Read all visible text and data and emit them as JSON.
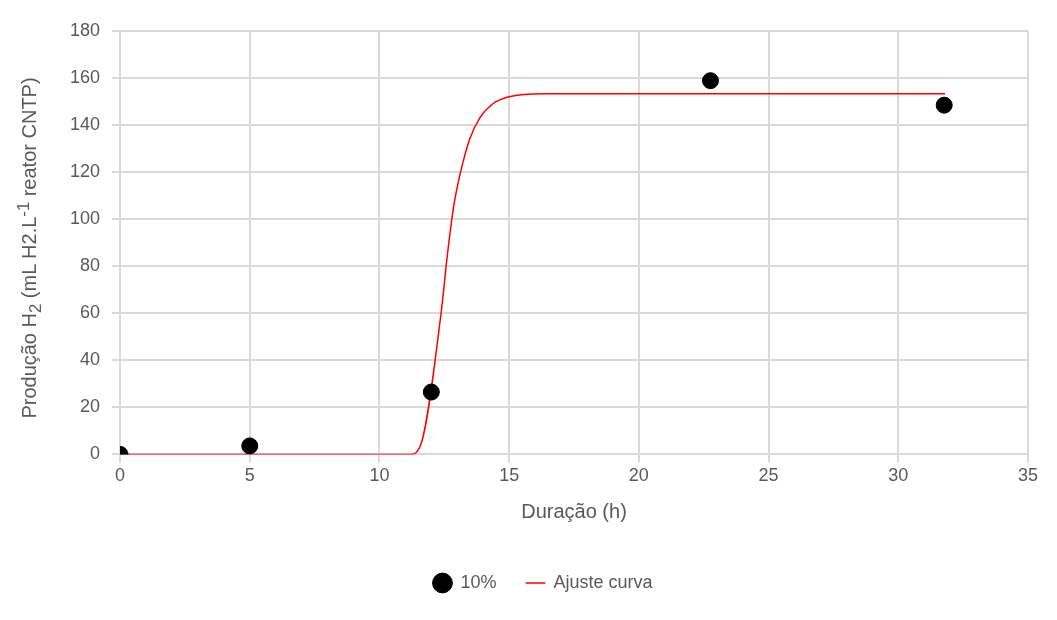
{
  "chart_data": {
    "type": "scatter",
    "xlabel": "Duração (h)",
    "ylabel": "Produção H$_{2}$ (mL H2.L$^{-1}$ reator CNTP)",
    "xlim": [
      0,
      35
    ],
    "xticks": [
      0,
      5,
      10,
      15,
      20,
      25,
      30,
      35
    ],
    "ylim": [
      0,
      180
    ],
    "yticks": [
      0,
      20,
      40,
      60,
      80,
      100,
      120,
      140,
      160,
      180
    ],
    "grid": true,
    "legend": "bottom",
    "marker": "circle",
    "series": [
      {
        "name": "10%",
        "color": "#000000",
        "x": [
          0,
          5,
          12,
          22.76,
          31.77
        ],
        "values": [
          0,
          3.6,
          26.5,
          158.8,
          148.4
        ]
      },
      {
        "name": "Ajuste curva",
        "type": "line",
        "color": "#ff0000",
        "marker": "none",
        "line_style": "solid",
        "x": [
          0,
          5,
          10,
          11.18,
          11.61,
          12.37,
          12.62,
          12.87,
          13.12,
          13.49,
          13.87,
          14.37,
          14.99,
          16.37,
          20,
          25,
          31.8
        ],
        "values": [
          0,
          0,
          0,
          0,
          4.7,
          59.5,
          84.9,
          106,
          119.6,
          134.3,
          143,
          149,
          152,
          153.3,
          153.3,
          153.3,
          153.3
        ]
      }
    ]
  }
}
